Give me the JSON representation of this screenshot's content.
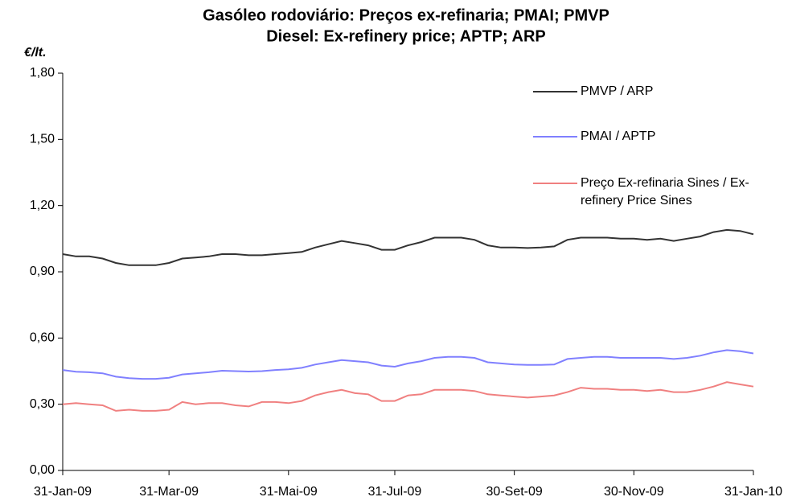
{
  "chart_data": {
    "type": "line",
    "title": "Gasóleo rodoviário: Preços ex-refinaria; PMAI; PMVP",
    "subtitle": "Diesel: Ex-refinery price; APTP; ARP",
    "y_label": "€/lt.",
    "categories": [
      "31-Jan-09",
      null,
      null,
      null,
      null,
      null,
      null,
      null,
      "31-Mar-09",
      null,
      null,
      null,
      null,
      null,
      null,
      null,
      null,
      "31-Mai-09",
      null,
      null,
      null,
      null,
      null,
      null,
      null,
      "31-Jul-09",
      null,
      null,
      null,
      null,
      null,
      null,
      null,
      null,
      "30-Set-09",
      null,
      null,
      null,
      null,
      null,
      null,
      null,
      null,
      "30-Nov-09",
      null,
      null,
      null,
      null,
      null,
      null,
      null,
      null,
      "31-Jan-10"
    ],
    "series": [
      {
        "name": "PMVP / ARP",
        "color": "#333333",
        "values": [
          0.98,
          0.97,
          0.97,
          0.96,
          0.94,
          0.93,
          0.93,
          0.93,
          0.94,
          0.96,
          0.965,
          0.97,
          0.98,
          0.98,
          0.975,
          0.975,
          0.98,
          0.985,
          0.99,
          1.01,
          1.025,
          1.04,
          1.03,
          1.02,
          1.0,
          1.0,
          1.02,
          1.035,
          1.055,
          1.055,
          1.055,
          1.045,
          1.02,
          1.01,
          1.01,
          1.008,
          1.01,
          1.015,
          1.045,
          1.055,
          1.055,
          1.055,
          1.05,
          1.05,
          1.045,
          1.05,
          1.04,
          1.05,
          1.06,
          1.08,
          1.09,
          1.085,
          1.07
        ]
      },
      {
        "name": "PMAI / APTP",
        "color": "#8080ff",
        "values": [
          0.455,
          0.447,
          0.445,
          0.44,
          0.425,
          0.418,
          0.415,
          0.415,
          0.42,
          0.435,
          0.44,
          0.445,
          0.452,
          0.45,
          0.448,
          0.45,
          0.455,
          0.458,
          0.465,
          0.48,
          0.49,
          0.5,
          0.495,
          0.49,
          0.475,
          0.47,
          0.485,
          0.495,
          0.51,
          0.515,
          0.515,
          0.51,
          0.49,
          0.485,
          0.48,
          0.478,
          0.478,
          0.48,
          0.505,
          0.51,
          0.515,
          0.515,
          0.51,
          0.51,
          0.51,
          0.51,
          0.505,
          0.51,
          0.52,
          0.535,
          0.545,
          0.54,
          0.53
        ]
      },
      {
        "name": "Preço Ex-refinaria Sines / Ex-refinery Price Sines",
        "color": "#f08080",
        "values": [
          0.3,
          0.305,
          0.3,
          0.295,
          0.27,
          0.275,
          0.27,
          0.27,
          0.275,
          0.31,
          0.3,
          0.305,
          0.305,
          0.295,
          0.29,
          0.31,
          0.31,
          0.305,
          0.315,
          0.34,
          0.355,
          0.365,
          0.35,
          0.345,
          0.315,
          0.315,
          0.34,
          0.345,
          0.365,
          0.365,
          0.365,
          0.36,
          0.345,
          0.34,
          0.335,
          0.33,
          0.335,
          0.34,
          0.355,
          0.375,
          0.37,
          0.37,
          0.365,
          0.365,
          0.36,
          0.365,
          0.355,
          0.355,
          0.365,
          0.38,
          0.4,
          0.39,
          0.38
        ]
      }
    ],
    "ylim": [
      0,
      1.8
    ],
    "yticks": [
      {
        "value": 0,
        "label": "0,00"
      },
      {
        "value": 0.3,
        "label": "0,30"
      },
      {
        "value": 0.6,
        "label": "0,60"
      },
      {
        "value": 0.9,
        "label": "0,90"
      },
      {
        "value": 1.2,
        "label": "1,20"
      },
      {
        "value": 1.5,
        "label": "1,50"
      },
      {
        "value": 1.8,
        "label": "1,80"
      }
    ],
    "grid": false,
    "legend": "upper right"
  }
}
